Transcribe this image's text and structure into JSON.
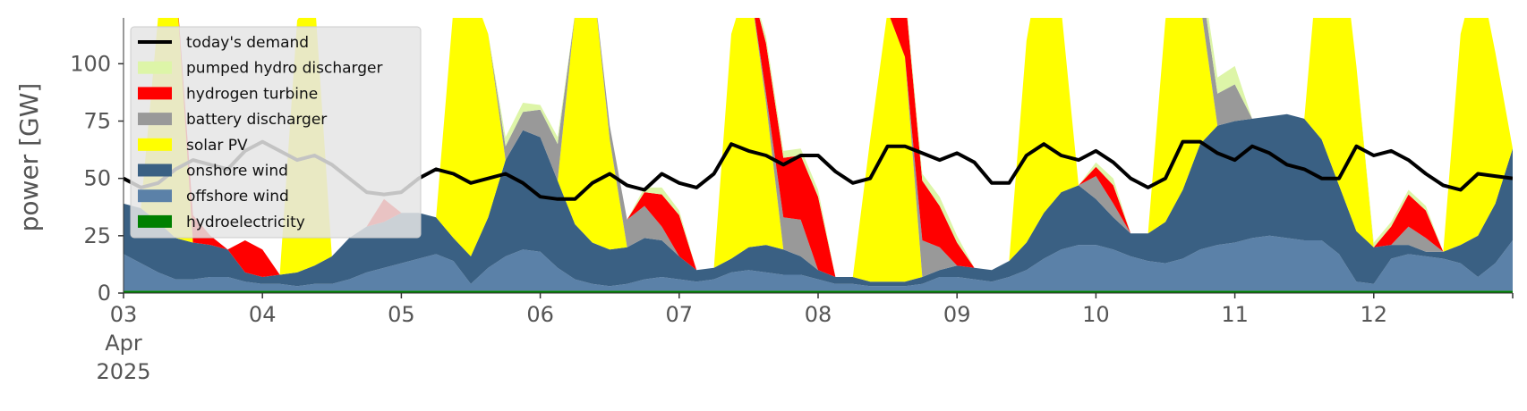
{
  "chart_data": {
    "type": "area",
    "title": "",
    "xlabel": "",
    "ylabel": "power [GW]",
    "xlim": [
      0,
      240
    ],
    "ylim": [
      0,
      120
    ],
    "grid": false,
    "legend_position": "top-left",
    "x_unit": "hours since 03 Apr 2025 00:00",
    "xticks": [
      {
        "x": 0,
        "lines": [
          "03",
          "Apr",
          "2025"
        ]
      },
      {
        "x": 24,
        "lines": [
          "04"
        ]
      },
      {
        "x": 48,
        "lines": [
          "05"
        ]
      },
      {
        "x": 72,
        "lines": [
          "06"
        ]
      },
      {
        "x": 96,
        "lines": [
          "07"
        ]
      },
      {
        "x": 120,
        "lines": [
          "08"
        ]
      },
      {
        "x": 144,
        "lines": [
          "09"
        ]
      },
      {
        "x": 168,
        "lines": [
          "10"
        ]
      },
      {
        "x": 192,
        "lines": [
          "11"
        ]
      },
      {
        "x": 216,
        "lines": [
          "12"
        ]
      }
    ],
    "yticks": [
      0,
      25,
      50,
      75,
      100
    ],
    "x": [
      0,
      3,
      6,
      9,
      12,
      15,
      18,
      21,
      24,
      27,
      30,
      33,
      36,
      39,
      42,
      45,
      48,
      51,
      54,
      57,
      60,
      63,
      66,
      69,
      72,
      75,
      78,
      81,
      84,
      87,
      90,
      93,
      96,
      99,
      102,
      105,
      108,
      111,
      114,
      117,
      120,
      123,
      126,
      129,
      132,
      135,
      138,
      141,
      144,
      147,
      150,
      153,
      156,
      159,
      162,
      165,
      168,
      171,
      174,
      177,
      180,
      183,
      186,
      189,
      192,
      195,
      198,
      201,
      204,
      207,
      210,
      213,
      216,
      219,
      222,
      225,
      228,
      231,
      234,
      237,
      240
    ],
    "stack_series": [
      {
        "name": "hydroelectricity",
        "color": "#008000",
        "values": [
          1,
          1,
          1,
          1,
          1,
          1,
          1,
          1,
          1,
          1,
          1,
          1,
          1,
          1,
          1,
          1,
          1,
          1,
          1,
          1,
          1,
          1,
          1,
          1,
          1,
          1,
          1,
          1,
          1,
          1,
          1,
          1,
          1,
          1,
          1,
          1,
          1,
          1,
          1,
          1,
          1,
          1,
          1,
          1,
          1,
          1,
          1,
          1,
          1,
          1,
          1,
          1,
          1,
          1,
          1,
          1,
          1,
          1,
          1,
          1,
          1,
          1,
          1,
          1,
          1,
          1,
          1,
          1,
          1,
          1,
          1,
          1,
          1,
          1,
          1,
          1,
          1,
          1,
          1,
          1,
          1
        ]
      },
      {
        "name": "offshore wind",
        "color": "#5b81a8",
        "values": [
          16,
          12,
          8,
          5,
          5,
          6,
          6,
          4,
          3,
          3,
          2,
          3,
          3,
          5,
          8,
          10,
          12,
          14,
          16,
          13,
          3,
          10,
          15,
          18,
          17,
          10,
          5,
          3,
          2,
          3,
          5,
          6,
          5,
          4,
          5,
          8,
          9,
          8,
          7,
          7,
          5,
          3,
          3,
          2,
          2,
          2,
          3,
          6,
          6,
          5,
          4,
          6,
          9,
          14,
          18,
          20,
          20,
          18,
          15,
          13,
          12,
          14,
          18,
          20,
          21,
          23,
          24,
          23,
          22,
          22,
          16,
          4,
          3,
          14,
          16,
          15,
          14,
          12,
          6,
          12,
          22
        ]
      },
      {
        "name": "onshore wind",
        "color": "#3a6083",
        "values": [
          22,
          24,
          22,
          18,
          16,
          14,
          12,
          4,
          3,
          4,
          6,
          8,
          12,
          18,
          20,
          20,
          22,
          20,
          16,
          10,
          12,
          22,
          42,
          52,
          50,
          38,
          24,
          18,
          16,
          16,
          18,
          16,
          10,
          5,
          5,
          6,
          10,
          12,
          11,
          8,
          4,
          3,
          3,
          2,
          2,
          2,
          3,
          3,
          5,
          5,
          5,
          7,
          12,
          20,
          25,
          26,
          20,
          14,
          10,
          12,
          18,
          30,
          46,
          52,
          53,
          52,
          52,
          54,
          53,
          44,
          30,
          22,
          16,
          6,
          4,
          2,
          3,
          8,
          18,
          26,
          40
        ]
      },
      {
        "name": "solar PV",
        "color": "#ffff00",
        "values": [
          0,
          0,
          90,
          115,
          0,
          0,
          0,
          0,
          0,
          0,
          110,
          118,
          0,
          0,
          0,
          0,
          0,
          0,
          0,
          100,
          118,
          80,
          0,
          0,
          0,
          0,
          92,
          118,
          48,
          0,
          0,
          0,
          0,
          0,
          0,
          98,
          118,
          62,
          0,
          0,
          0,
          0,
          0,
          62,
          118,
          98,
          0,
          0,
          0,
          0,
          0,
          0,
          88,
          118,
          80,
          0,
          0,
          0,
          0,
          0,
          88,
          118,
          62,
          0,
          0,
          0,
          0,
          0,
          0,
          96,
          118,
          72,
          0,
          0,
          0,
          0,
          0,
          92,
          118,
          66,
          0
        ]
      },
      {
        "name": "battery discharger",
        "color": "#999999",
        "values": [
          0,
          0,
          0,
          0,
          0,
          0,
          0,
          0,
          0,
          0,
          0,
          0,
          0,
          0,
          0,
          0,
          0,
          0,
          0,
          0,
          0,
          0,
          6,
          8,
          12,
          16,
          0,
          0,
          6,
          12,
          14,
          6,
          0,
          0,
          0,
          0,
          0,
          4,
          14,
          16,
          0,
          0,
          0,
          0,
          0,
          0,
          16,
          10,
          0,
          0,
          0,
          0,
          0,
          0,
          0,
          0,
          10,
          6,
          0,
          0,
          0,
          0,
          12,
          14,
          16,
          0,
          0,
          0,
          0,
          0,
          0,
          0,
          0,
          0,
          8,
          6,
          0,
          0,
          0,
          0,
          0
        ]
      },
      {
        "name": "hydrogen turbine",
        "color": "#ff0000",
        "values": [
          0,
          0,
          0,
          0,
          12,
          4,
          0,
          14,
          12,
          0,
          0,
          0,
          0,
          0,
          0,
          10,
          0,
          0,
          0,
          0,
          0,
          0,
          0,
          0,
          0,
          0,
          0,
          0,
          0,
          0,
          6,
          14,
          18,
          0,
          0,
          0,
          0,
          22,
          26,
          28,
          32,
          0,
          0,
          0,
          0,
          28,
          26,
          18,
          10,
          0,
          0,
          0,
          0,
          0,
          0,
          0,
          4,
          8,
          0,
          0,
          0,
          0,
          0,
          0,
          0,
          0,
          0,
          0,
          0,
          0,
          0,
          0,
          0,
          8,
          14,
          12,
          0,
          0,
          0,
          0,
          0
        ]
      },
      {
        "name": "pumped hydro discharger",
        "color": "#ddf5a8",
        "values": [
          0,
          0,
          0,
          0,
          0,
          0,
          0,
          0,
          0,
          0,
          0,
          0,
          0,
          0,
          0,
          0,
          0,
          0,
          0,
          0,
          0,
          0,
          4,
          4,
          2,
          3,
          0,
          0,
          0,
          0,
          2,
          3,
          2,
          0,
          0,
          0,
          0,
          3,
          3,
          3,
          3,
          0,
          0,
          0,
          0,
          3,
          3,
          4,
          3,
          0,
          0,
          0,
          0,
          0,
          0,
          0,
          2,
          3,
          0,
          0,
          0,
          0,
          6,
          7,
          8,
          0,
          0,
          0,
          0,
          0,
          0,
          0,
          2,
          2,
          2,
          2,
          0,
          0,
          0,
          0,
          0
        ]
      }
    ],
    "line_series": [
      {
        "name": "today's demand",
        "color": "#000000",
        "values": [
          50,
          46,
          48,
          54,
          58,
          56,
          54,
          62,
          66,
          62,
          58,
          60,
          56,
          50,
          44,
          43,
          44,
          50,
          54,
          52,
          48,
          50,
          52,
          48,
          42,
          41,
          41,
          48,
          52,
          47,
          45,
          52,
          48,
          46,
          52,
          65,
          62,
          60,
          56,
          60,
          60,
          53,
          48,
          50,
          64,
          64,
          61,
          58,
          61,
          57,
          48,
          48,
          60,
          65,
          60,
          58,
          62,
          57,
          50,
          46,
          50,
          66,
          66,
          61,
          58,
          64,
          61,
          56,
          54,
          50,
          50,
          64,
          60,
          62,
          58,
          52,
          47,
          45,
          52,
          51,
          50
        ]
      }
    ],
    "legend": [
      "today's demand",
      "pumped hydro discharger",
      "hydrogen turbine",
      "battery discharger",
      "solar PV",
      "onshore wind",
      "offshore wind",
      "hydroelectricity"
    ]
  }
}
